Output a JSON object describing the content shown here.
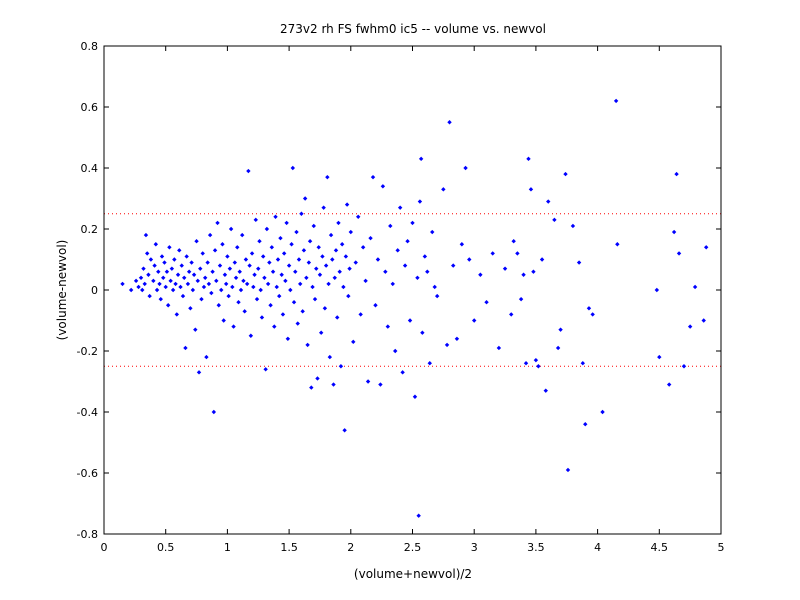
{
  "chart_data": {
    "type": "scatter",
    "title": "273v2 rh FS fwhm0 ic5 -- volume vs. newvol",
    "xlabel": "(volume+newvol)/2",
    "ylabel": "(volume-newvol)",
    "xlim": [
      0,
      5
    ],
    "ylim": [
      -0.8,
      0.8
    ],
    "xticks": [
      "0",
      "0.5",
      "1",
      "1.5",
      "2",
      "2.5",
      "3",
      "3.5",
      "4",
      "4.5",
      "5"
    ],
    "yticks": [
      "-0.8",
      "-0.6",
      "-0.4",
      "-0.2",
      "0",
      "0.2",
      "0.4",
      "0.6",
      "0.8"
    ],
    "grid": false,
    "reference_lines": [
      0.25,
      -0.25
    ],
    "marker_color": "#0000ff",
    "reference_line_color": "#ff0000",
    "series": [
      {
        "points": [
          [
            0.15,
            0.02
          ],
          [
            0.22,
            0.0
          ],
          [
            0.26,
            0.03
          ],
          [
            0.28,
            0.01
          ],
          [
            0.3,
            0.04
          ],
          [
            0.31,
            0.0
          ],
          [
            0.32,
            0.07
          ],
          [
            0.33,
            0.02
          ],
          [
            0.34,
            0.18
          ],
          [
            0.35,
            0.12
          ],
          [
            0.36,
            0.05
          ],
          [
            0.37,
            -0.02
          ],
          [
            0.38,
            0.1
          ],
          [
            0.4,
            0.03
          ],
          [
            0.41,
            0.08
          ],
          [
            0.42,
            0.15
          ],
          [
            0.43,
            0.0
          ],
          [
            0.44,
            0.06
          ],
          [
            0.45,
            0.02
          ],
          [
            0.46,
            -0.03
          ],
          [
            0.47,
            0.11
          ],
          [
            0.48,
            0.04
          ],
          [
            0.49,
            0.09
          ],
          [
            0.5,
            0.01
          ],
          [
            0.51,
            0.06
          ],
          [
            0.52,
            -0.05
          ],
          [
            0.53,
            0.14
          ],
          [
            0.54,
            0.03
          ],
          [
            0.55,
            0.07
          ],
          [
            0.56,
            0.0
          ],
          [
            0.57,
            0.1
          ],
          [
            0.58,
            0.02
          ],
          [
            0.59,
            -0.08
          ],
          [
            0.6,
            0.05
          ],
          [
            0.61,
            0.13
          ],
          [
            0.62,
            0.01
          ],
          [
            0.63,
            0.08
          ],
          [
            0.64,
            -0.02
          ],
          [
            0.65,
            0.04
          ],
          [
            0.66,
            -0.19
          ],
          [
            0.67,
            0.11
          ],
          [
            0.68,
            0.02
          ],
          [
            0.69,
            0.06
          ],
          [
            0.7,
            -0.06
          ],
          [
            0.71,
            0.09
          ],
          [
            0.72,
            0.0
          ],
          [
            0.73,
            0.05
          ],
          [
            0.74,
            -0.13
          ],
          [
            0.75,
            0.16
          ],
          [
            0.76,
            0.03
          ],
          [
            0.77,
            -0.27
          ],
          [
            0.78,
            0.07
          ],
          [
            0.79,
            -0.03
          ],
          [
            0.8,
            0.12
          ],
          [
            0.81,
            0.01
          ],
          [
            0.82,
            0.04
          ],
          [
            0.83,
            -0.22
          ],
          [
            0.84,
            0.09
          ],
          [
            0.85,
            0.02
          ],
          [
            0.86,
            0.18
          ],
          [
            0.87,
            -0.01
          ],
          [
            0.88,
            0.06
          ],
          [
            0.89,
            -0.4
          ],
          [
            0.9,
            0.13
          ],
          [
            0.91,
            0.03
          ],
          [
            0.92,
            0.22
          ],
          [
            0.93,
            -0.05
          ],
          [
            0.94,
            0.08
          ],
          [
            0.95,
            0.0
          ],
          [
            0.96,
            0.15
          ],
          [
            0.97,
            -0.1
          ],
          [
            0.98,
            0.05
          ],
          [
            0.99,
            0.02
          ],
          [
            1.0,
            0.11
          ],
          [
            1.01,
            -0.02
          ],
          [
            1.02,
            0.07
          ],
          [
            1.03,
            0.2
          ],
          [
            1.04,
            0.01
          ],
          [
            1.05,
            -0.12
          ],
          [
            1.06,
            0.09
          ],
          [
            1.07,
            0.04
          ],
          [
            1.08,
            0.14
          ],
          [
            1.09,
            -0.04
          ],
          [
            1.1,
            0.06
          ],
          [
            1.11,
            0.0
          ],
          [
            1.12,
            0.18
          ],
          [
            1.13,
            0.03
          ],
          [
            1.14,
            -0.07
          ],
          [
            1.15,
            0.1
          ],
          [
            1.16,
            0.02
          ],
          [
            1.17,
            0.39
          ],
          [
            1.18,
            0.08
          ],
          [
            1.19,
            -0.15
          ],
          [
            1.2,
            0.12
          ],
          [
            1.21,
            0.01
          ],
          [
            1.22,
            0.05
          ],
          [
            1.23,
            0.23
          ],
          [
            1.24,
            -0.03
          ],
          [
            1.25,
            0.07
          ],
          [
            1.26,
            0.16
          ],
          [
            1.27,
            0.0
          ],
          [
            1.28,
            -0.09
          ],
          [
            1.29,
            0.11
          ],
          [
            1.3,
            0.04
          ],
          [
            1.31,
            -0.26
          ],
          [
            1.32,
            0.2
          ],
          [
            1.33,
            0.02
          ],
          [
            1.34,
            0.09
          ],
          [
            1.35,
            -0.05
          ],
          [
            1.36,
            0.14
          ],
          [
            1.37,
            0.06
          ],
          [
            1.38,
            -0.12
          ],
          [
            1.39,
            0.24
          ],
          [
            1.4,
            0.01
          ],
          [
            1.41,
            0.1
          ],
          [
            1.42,
            -0.02
          ],
          [
            1.43,
            0.17
          ],
          [
            1.44,
            0.05
          ],
          [
            1.45,
            -0.08
          ],
          [
            1.46,
            0.12
          ],
          [
            1.47,
            0.03
          ],
          [
            1.48,
            0.22
          ],
          [
            1.49,
            -0.16
          ],
          [
            1.5,
            0.08
          ],
          [
            1.51,
            0.0
          ],
          [
            1.52,
            0.15
          ],
          [
            1.53,
            0.4
          ],
          [
            1.54,
            -0.04
          ],
          [
            1.55,
            0.06
          ],
          [
            1.56,
            0.19
          ],
          [
            1.57,
            -0.11
          ],
          [
            1.58,
            0.1
          ],
          [
            1.59,
            0.02
          ],
          [
            1.6,
            0.25
          ],
          [
            1.61,
            -0.07
          ],
          [
            1.62,
            0.13
          ],
          [
            1.63,
            0.3
          ],
          [
            1.64,
            0.04
          ],
          [
            1.65,
            -0.18
          ],
          [
            1.66,
            0.09
          ],
          [
            1.67,
            0.16
          ],
          [
            1.68,
            -0.32
          ],
          [
            1.69,
            0.01
          ],
          [
            1.7,
            0.21
          ],
          [
            1.71,
            -0.03
          ],
          [
            1.72,
            0.07
          ],
          [
            1.73,
            -0.29
          ],
          [
            1.74,
            0.14
          ],
          [
            1.75,
            0.05
          ],
          [
            1.76,
            -0.14
          ],
          [
            1.77,
            0.11
          ],
          [
            1.78,
            0.27
          ],
          [
            1.79,
            -0.06
          ],
          [
            1.8,
            0.08
          ],
          [
            1.81,
            0.37
          ],
          [
            1.82,
            0.02
          ],
          [
            1.83,
            -0.22
          ],
          [
            1.84,
            0.18
          ],
          [
            1.85,
            0.1
          ],
          [
            1.86,
            -0.31
          ],
          [
            1.87,
            0.04
          ],
          [
            1.88,
            0.13
          ],
          [
            1.89,
            -0.09
          ],
          [
            1.9,
            0.22
          ],
          [
            1.91,
            0.06
          ],
          [
            1.92,
            -0.25
          ],
          [
            1.93,
            0.15
          ],
          [
            1.94,
            0.01
          ],
          [
            1.95,
            -0.46
          ],
          [
            1.96,
            0.11
          ],
          [
            1.97,
            0.28
          ],
          [
            1.98,
            -0.02
          ],
          [
            1.99,
            0.07
          ],
          [
            2.0,
            0.19
          ],
          [
            2.02,
            -0.17
          ],
          [
            2.04,
            0.09
          ],
          [
            2.06,
            0.24
          ],
          [
            2.08,
            -0.08
          ],
          [
            2.1,
            0.14
          ],
          [
            2.12,
            0.03
          ],
          [
            2.14,
            -0.3
          ],
          [
            2.16,
            0.17
          ],
          [
            2.18,
            0.37
          ],
          [
            2.2,
            -0.05
          ],
          [
            2.22,
            0.1
          ],
          [
            2.24,
            -0.31
          ],
          [
            2.26,
            0.34
          ],
          [
            2.28,
            0.06
          ],
          [
            2.3,
            -0.12
          ],
          [
            2.32,
            0.21
          ],
          [
            2.34,
            0.02
          ],
          [
            2.36,
            -0.2
          ],
          [
            2.38,
            0.13
          ],
          [
            2.4,
            0.27
          ],
          [
            2.42,
            -0.27
          ],
          [
            2.44,
            0.08
          ],
          [
            2.46,
            0.16
          ],
          [
            2.48,
            -0.1
          ],
          [
            2.5,
            0.22
          ],
          [
            2.52,
            -0.35
          ],
          [
            2.54,
            0.04
          ],
          [
            2.55,
            -0.74
          ],
          [
            2.56,
            0.29
          ],
          [
            2.57,
            0.43
          ],
          [
            2.58,
            -0.14
          ],
          [
            2.6,
            0.11
          ],
          [
            2.62,
            0.06
          ],
          [
            2.64,
            -0.24
          ],
          [
            2.66,
            0.19
          ],
          [
            2.68,
            0.01
          ],
          [
            2.7,
            -0.02
          ],
          [
            2.75,
            0.33
          ],
          [
            2.78,
            -0.18
          ],
          [
            2.8,
            0.55
          ],
          [
            2.83,
            0.08
          ],
          [
            2.86,
            -0.16
          ],
          [
            2.9,
            0.15
          ],
          [
            2.93,
            0.4
          ],
          [
            2.96,
            0.1
          ],
          [
            3.0,
            -0.1
          ],
          [
            3.05,
            0.05
          ],
          [
            3.1,
            -0.04
          ],
          [
            3.15,
            0.12
          ],
          [
            3.2,
            -0.19
          ],
          [
            3.25,
            0.07
          ],
          [
            3.3,
            -0.08
          ],
          [
            3.32,
            0.16
          ],
          [
            3.35,
            0.12
          ],
          [
            3.38,
            -0.03
          ],
          [
            3.4,
            0.05
          ],
          [
            3.42,
            -0.24
          ],
          [
            3.44,
            0.43
          ],
          [
            3.46,
            0.33
          ],
          [
            3.48,
            0.06
          ],
          [
            3.5,
            -0.23
          ],
          [
            3.52,
            -0.25
          ],
          [
            3.55,
            0.1
          ],
          [
            3.58,
            -0.33
          ],
          [
            3.6,
            0.29
          ],
          [
            3.65,
            0.23
          ],
          [
            3.68,
            -0.19
          ],
          [
            3.7,
            -0.13
          ],
          [
            3.74,
            0.38
          ],
          [
            3.76,
            -0.59
          ],
          [
            3.8,
            0.21
          ],
          [
            3.85,
            0.09
          ],
          [
            3.88,
            -0.24
          ],
          [
            3.9,
            -0.44
          ],
          [
            3.93,
            -0.06
          ],
          [
            3.96,
            -0.08
          ],
          [
            4.04,
            -0.4
          ],
          [
            4.15,
            0.62
          ],
          [
            4.16,
            0.15
          ],
          [
            4.48,
            0.0
          ],
          [
            4.5,
            -0.22
          ],
          [
            4.58,
            -0.31
          ],
          [
            4.62,
            0.19
          ],
          [
            4.64,
            0.38
          ],
          [
            4.66,
            0.12
          ],
          [
            4.7,
            -0.25
          ],
          [
            4.75,
            -0.12
          ],
          [
            4.79,
            0.01
          ],
          [
            4.86,
            -0.1
          ],
          [
            4.88,
            0.14
          ]
        ]
      }
    ]
  }
}
